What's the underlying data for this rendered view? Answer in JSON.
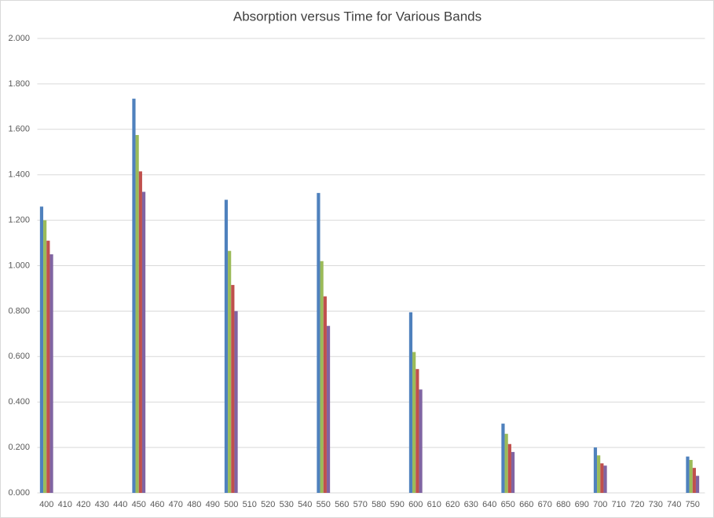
{
  "chart_data": {
    "type": "bar",
    "title": "Absorption versus Time for Various Bands",
    "categories": [
      "400",
      "410",
      "420",
      "430",
      "440",
      "450",
      "460",
      "470",
      "480",
      "490",
      "500",
      "510",
      "520",
      "530",
      "540",
      "550",
      "560",
      "570",
      "580",
      "590",
      "600",
      "610",
      "620",
      "630",
      "640",
      "650",
      "660",
      "670",
      "680",
      "690",
      "700",
      "710",
      "720",
      "730",
      "740",
      "750"
    ],
    "series": [
      {
        "color": "#4f81bd",
        "values": [
          1.26,
          null,
          null,
          null,
          null,
          1.735,
          null,
          null,
          null,
          null,
          1.29,
          null,
          null,
          null,
          null,
          1.32,
          null,
          null,
          null,
          null,
          0.795,
          null,
          null,
          null,
          null,
          0.305,
          null,
          null,
          null,
          null,
          0.2,
          null,
          null,
          null,
          null,
          0.16
        ]
      },
      {
        "color": "#9bbb59",
        "values": [
          1.2,
          null,
          null,
          null,
          null,
          1.575,
          null,
          null,
          null,
          null,
          1.065,
          null,
          null,
          null,
          null,
          1.02,
          null,
          null,
          null,
          null,
          0.62,
          null,
          null,
          null,
          null,
          0.26,
          null,
          null,
          null,
          null,
          0.165,
          null,
          null,
          null,
          null,
          0.145
        ]
      },
      {
        "color": "#c0504d",
        "values": [
          1.11,
          null,
          null,
          null,
          null,
          1.415,
          null,
          null,
          null,
          null,
          0.915,
          null,
          null,
          null,
          null,
          0.865,
          null,
          null,
          null,
          null,
          0.545,
          null,
          null,
          null,
          null,
          0.215,
          null,
          null,
          null,
          null,
          0.13,
          null,
          null,
          null,
          null,
          0.11
        ]
      },
      {
        "color": "#8064a2",
        "values": [
          1.05,
          null,
          null,
          null,
          null,
          1.325,
          null,
          null,
          null,
          null,
          0.8,
          null,
          null,
          null,
          null,
          0.735,
          null,
          null,
          null,
          null,
          0.455,
          null,
          null,
          null,
          null,
          0.18,
          null,
          null,
          null,
          null,
          0.12,
          null,
          null,
          null,
          null,
          0.075
        ]
      }
    ],
    "ylim": [
      0,
      2
    ],
    "yticks": [
      {
        "value": 0,
        "label": "0.000"
      },
      {
        "value": 0.2,
        "label": "0.200"
      },
      {
        "value": 0.4,
        "label": "0.400"
      },
      {
        "value": 0.6,
        "label": "0.600"
      },
      {
        "value": 0.8,
        "label": "0.800"
      },
      {
        "value": 1,
        "label": "1.000"
      },
      {
        "value": 1.2,
        "label": "1.200"
      },
      {
        "value": 1.4,
        "label": "1.400"
      },
      {
        "value": 1.6,
        "label": "1.600"
      },
      {
        "value": 1.8,
        "label": "1.800"
      },
      {
        "value": 2,
        "label": "2.000"
      }
    ],
    "grid": true
  }
}
